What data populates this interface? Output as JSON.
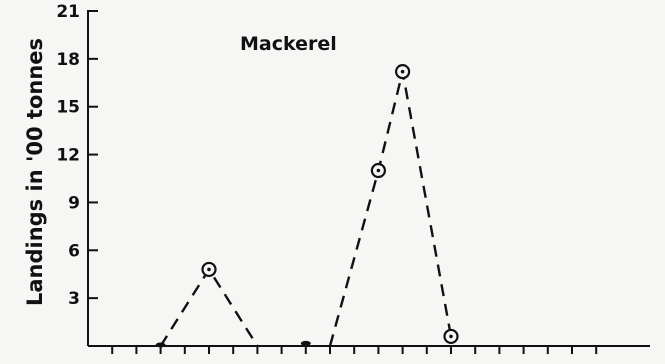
{
  "chart_data": {
    "type": "line",
    "title": "",
    "annotation": "Mackerel",
    "ylabel": "Landings in '00 tonnes",
    "xlabel": "",
    "ylim": [
      0,
      21
    ],
    "yticks": [
      3,
      6,
      9,
      12,
      15,
      18,
      21
    ],
    "x_tick_count": 21,
    "grid": false,
    "legend": "none",
    "color": "#111111",
    "segments": [
      [
        {
          "x": 3,
          "y": 0,
          "marker": false
        },
        {
          "x": 5,
          "y": 4.8,
          "marker": true
        },
        {
          "x": 7,
          "y": 0,
          "marker": false
        }
      ],
      [
        {
          "x": 10,
          "y": 0,
          "marker": false
        },
        {
          "x": 12,
          "y": 11,
          "marker": true
        },
        {
          "x": 13,
          "y": 17.2,
          "marker": true
        },
        {
          "x": 15,
          "y": 0.6,
          "marker": true
        }
      ]
    ],
    "ground_points": [
      {
        "x": 3,
        "y": 0
      },
      {
        "x": 9,
        "y": 0.1
      }
    ]
  }
}
